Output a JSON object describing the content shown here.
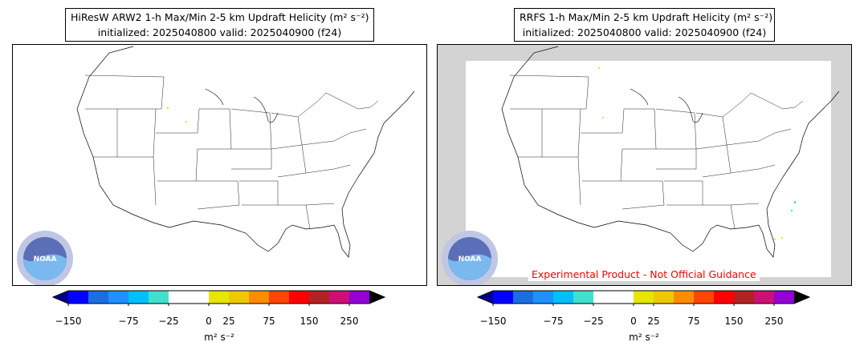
{
  "left_panel": {
    "title_line1": "HiResW ARW2 1-h Max/Min 2-5 km Updraft Helicity (m² s⁻²)",
    "title_line2": "initialized: 2025040800 valid: 2025040900 (f24)"
  },
  "right_panel": {
    "title_line1": "RRFS 1-h Max/Min 2-5 km Updraft Helicity (m² s⁻²)",
    "title_line2": "initialized: 2025040800 valid: 2025040900 (f24)",
    "disclaimer": "Experimental Product - Not Official Guidance"
  },
  "logo": {
    "name": "NOAA",
    "ring_text": "NATIONAL OCEANIC AND ATMOSPHERIC ADMINISTRATION U.S. DEPARTMENT OF COMMERCE"
  },
  "colorbar": {
    "colors": [
      "#0000ff",
      "#1c6ee0",
      "#1e90ff",
      "#00bfff",
      "#40e0d0",
      "#ffffff",
      "#ffffff",
      "#e6e600",
      "#eec900",
      "#ff8c00",
      "#ff4500",
      "#ff0000",
      "#b22222",
      "#cd1076",
      "#9400d3"
    ],
    "ext_low_color": "#00008b",
    "ext_high_color": "#000000",
    "tick_labels": [
      "−150",
      "−75",
      "−25",
      "0",
      "25",
      "75",
      "150",
      "250"
    ],
    "unit": "m² s⁻²"
  }
}
